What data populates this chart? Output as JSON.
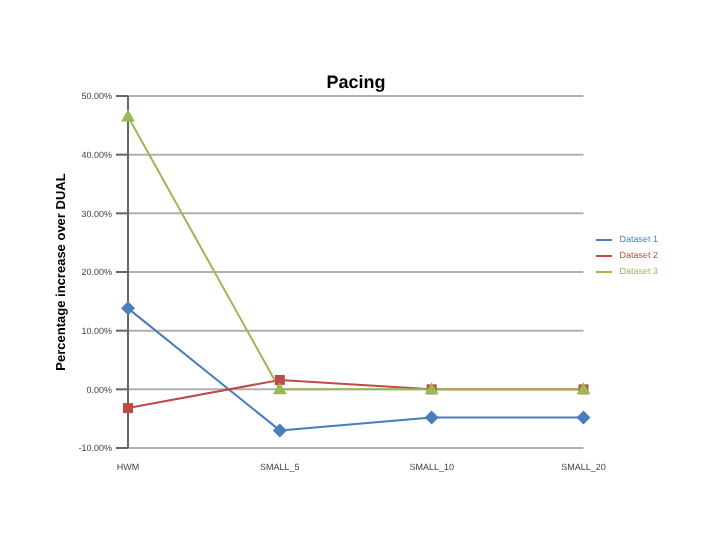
{
  "chart_data": {
    "type": "line",
    "title": "Pacing",
    "ylabel": "Percentage increase over DUAL",
    "categories": [
      "HWM",
      "SMALL_5",
      "SMALL_10",
      "SMALL_20"
    ],
    "series": [
      {
        "name": "Dataset 1",
        "color": "#4a7ebb",
        "marker": "diamond",
        "values": [
          13.8,
          -7,
          -4.8,
          -4.8
        ]
      },
      {
        "name": "Dataset 2",
        "color": "#be4b48",
        "marker": "square",
        "values": [
          -3.2,
          1.6,
          0,
          0
        ]
      },
      {
        "name": "Dataset 3",
        "color": "#98b954",
        "marker": "triangle",
        "values": [
          46.5,
          0,
          0,
          0
        ]
      }
    ],
    "ylim": [
      -10,
      50
    ],
    "yticks": [
      {
        "value": -10,
        "label": "-10.00%"
      },
      {
        "value": 0,
        "label": "0.00%"
      },
      {
        "value": 10,
        "label": "10.00%"
      },
      {
        "value": 20,
        "label": "20.00%"
      },
      {
        "value": 30,
        "label": "30.00%"
      },
      {
        "value": 40,
        "label": "40.00%"
      },
      {
        "value": 50,
        "label": "50.00%"
      }
    ],
    "grid": "y",
    "legend": "right"
  }
}
